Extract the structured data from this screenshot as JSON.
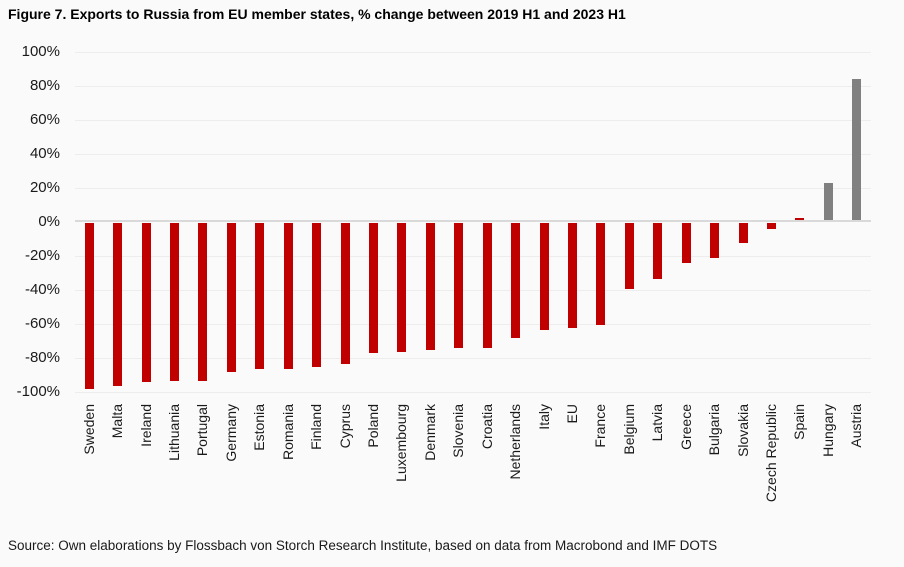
{
  "figure": {
    "title": "Figure 7. Exports to Russia from EU member states, % change between 2019 H1 and 2023 H1",
    "source": "Source: Own elaborations by Flossbach von Storch Research Institute, based on data from Macrobond and IMF DOTS"
  },
  "colors": {
    "bar_negative": "#c00000",
    "bar_positive_highlight": "#808080",
    "axis_line": "#d9d9d9",
    "gridline": "#ededed",
    "text": "#1a1a1a",
    "background": "#fafafa"
  },
  "chart_data": {
    "type": "bar",
    "title": "Figure 7. Exports to Russia from EU member states, % change between 2019 H1 and 2023 H1",
    "xlabel": "",
    "ylabel": "",
    "value_unit": "%",
    "grid": true,
    "legend": "none",
    "ylim": [
      -100,
      100
    ],
    "ytick_step": 20,
    "ytick_labels": [
      "100%",
      "80%",
      "60%",
      "40%",
      "20%",
      "0%",
      "-20%",
      "-40%",
      "-60%",
      "-80%",
      "-100%"
    ],
    "categories": [
      "Sweden",
      "Malta",
      "Ireland",
      "Lithuania",
      "Portugal",
      "Germany",
      "Estonia",
      "Romania",
      "Finland",
      "Cyprus",
      "Poland",
      "Luxembourg",
      "Denmark",
      "Slovenia",
      "Croatia",
      "Netherlands",
      "Italy",
      "EU",
      "France",
      "Belgium",
      "Latvia",
      "Greece",
      "Bulgaria",
      "Slovakia",
      "Czech Republic",
      "Spain",
      "Hungary",
      "Austria"
    ],
    "values": [
      -98,
      -96,
      -94,
      -93,
      -93,
      -88,
      -86,
      -86,
      -85,
      -83,
      -77,
      -76,
      -75,
      -74,
      -74,
      -68,
      -63,
      -62,
      -60,
      -39,
      -33,
      -24,
      -21,
      -12,
      -4,
      1,
      22,
      83
    ],
    "bar_colors": [
      "#c00000",
      "#c00000",
      "#c00000",
      "#c00000",
      "#c00000",
      "#c00000",
      "#c00000",
      "#c00000",
      "#c00000",
      "#c00000",
      "#c00000",
      "#c00000",
      "#c00000",
      "#c00000",
      "#c00000",
      "#c00000",
      "#c00000",
      "#c00000",
      "#c00000",
      "#c00000",
      "#c00000",
      "#c00000",
      "#c00000",
      "#c00000",
      "#c00000",
      "#c00000",
      "#808080",
      "#808080"
    ]
  }
}
